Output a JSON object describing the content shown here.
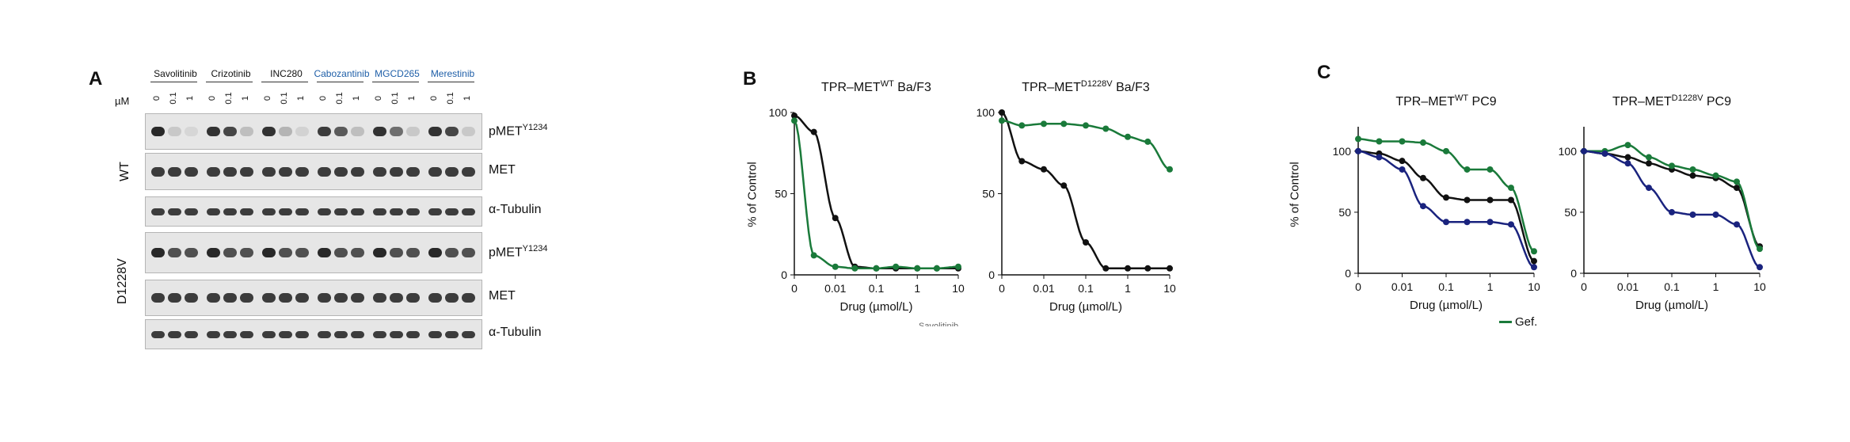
{
  "panelA": {
    "letter": "A",
    "unit": "µM",
    "drugs": [
      {
        "name": "Savolitinib",
        "color": "#111111"
      },
      {
        "name": "Crizotinib",
        "color": "#111111"
      },
      {
        "name": "INC280",
        "color": "#111111"
      },
      {
        "name": "Cabozantinib",
        "color": "#1f5fa8"
      },
      {
        "name": "MGCD265",
        "color": "#1f5fa8"
      },
      {
        "name": "Merestinib",
        "color": "#1f5fa8"
      }
    ],
    "doses": [
      "0",
      "0.1",
      "1"
    ],
    "groups": [
      {
        "label": "WT",
        "rows": [
          "pMET",
          "MET",
          "α-Tubulin"
        ]
      },
      {
        "label": "D1228V",
        "rows": [
          "pMET",
          "MET",
          "α-Tubulin"
        ]
      }
    ],
    "phospho_superscript": "Y1234"
  },
  "panelB": {
    "letter": "B",
    "ylabel": "% of Control",
    "xlabel": "Drug (µmol/L)",
    "bottom_label": "Savolitinib"
  },
  "panelC": {
    "letter": "C",
    "ylabel": "% of Control",
    "xlabel": "Drug (µmol/L)",
    "legend": [
      {
        "name": "Gef.",
        "color": "#1a7a3a"
      }
    ]
  },
  "colors": {
    "black": "#111111",
    "green": "#1a7a3a",
    "navy": "#1a237e"
  },
  "chart_data": [
    {
      "type": "line",
      "title": "TPR–MET",
      "title_sup": "WT",
      "title_suffix": " Ba/F3",
      "xlabel": "Drug (µmol/L)",
      "ylabel": "% of Control",
      "x_scale": "log",
      "x_ticks": [
        "0",
        "0.01",
        "0.1",
        "1",
        "10"
      ],
      "y_ticks": [
        "0",
        "50",
        "100"
      ],
      "ylim": [
        0,
        100
      ],
      "series": [
        {
          "color": "#111111",
          "x": [
            0.001,
            0.003,
            0.01,
            0.03,
            0.1,
            0.3,
            1,
            3,
            10
          ],
          "y": [
            98,
            88,
            35,
            5,
            4,
            4,
            4,
            4,
            4
          ]
        },
        {
          "color": "#1a7a3a",
          "x": [
            0.001,
            0.003,
            0.01,
            0.03,
            0.1,
            0.3,
            1,
            3,
            10
          ],
          "y": [
            95,
            12,
            5,
            4,
            4,
            5,
            4,
            4,
            5
          ]
        }
      ]
    },
    {
      "type": "line",
      "title": "TPR–MET",
      "title_sup": "D1228V",
      "title_suffix": " Ba/F3",
      "xlabel": "Drug (µmol/L)",
      "ylabel": "",
      "x_scale": "log",
      "x_ticks": [
        "0",
        "0.01",
        "0.1",
        "1",
        "10"
      ],
      "y_ticks": [
        "0",
        "50",
        "100"
      ],
      "ylim": [
        0,
        100
      ],
      "series": [
        {
          "color": "#111111",
          "x": [
            0.001,
            0.003,
            0.01,
            0.03,
            0.1,
            0.3,
            1,
            3,
            10
          ],
          "y": [
            100,
            70,
            65,
            55,
            20,
            4,
            4,
            4,
            4
          ]
        },
        {
          "color": "#1a7a3a",
          "x": [
            0.001,
            0.003,
            0.01,
            0.03,
            0.1,
            0.3,
            1,
            3,
            10
          ],
          "y": [
            95,
            92,
            93,
            93,
            92,
            90,
            85,
            82,
            65
          ]
        }
      ]
    },
    {
      "type": "line",
      "title": "TPR–MET",
      "title_sup": "WT",
      "title_suffix": " PC9",
      "xlabel": "Drug (µmol/L)",
      "ylabel": "% of Control",
      "x_scale": "log",
      "x_ticks": [
        "0",
        "0.01",
        "0.1",
        "1",
        "10"
      ],
      "y_ticks": [
        "0",
        "50",
        "100"
      ],
      "ylim": [
        0,
        120
      ],
      "series": [
        {
          "color": "#111111",
          "x": [
            0.001,
            0.003,
            0.01,
            0.03,
            0.1,
            0.3,
            1,
            3,
            10
          ],
          "y": [
            100,
            98,
            92,
            78,
            62,
            60,
            60,
            60,
            10
          ]
        },
        {
          "color": "#1a7a3a",
          "x": [
            0.001,
            0.003,
            0.01,
            0.03,
            0.1,
            0.3,
            1,
            3,
            10
          ],
          "y": [
            110,
            108,
            108,
            107,
            100,
            85,
            85,
            70,
            18
          ]
        },
        {
          "color": "#1a237e",
          "x": [
            0.001,
            0.003,
            0.01,
            0.03,
            0.1,
            0.3,
            1,
            3,
            10
          ],
          "y": [
            100,
            95,
            85,
            55,
            42,
            42,
            42,
            40,
            5
          ]
        }
      ]
    },
    {
      "type": "line",
      "title": "TPR–MET",
      "title_sup": "D1228V",
      "title_suffix": " PC9",
      "xlabel": "Drug (µmol/L)",
      "ylabel": "",
      "x_scale": "log",
      "x_ticks": [
        "0",
        "0.01",
        "0.1",
        "1",
        "10"
      ],
      "y_ticks": [
        "0",
        "50",
        "100"
      ],
      "ylim": [
        0,
        120
      ],
      "series": [
        {
          "color": "#111111",
          "x": [
            0.001,
            0.003,
            0.01,
            0.03,
            0.1,
            0.3,
            1,
            3,
            10
          ],
          "y": [
            100,
            98,
            95,
            90,
            85,
            80,
            78,
            70,
            22
          ]
        },
        {
          "color": "#1a7a3a",
          "x": [
            0.001,
            0.003,
            0.01,
            0.03,
            0.1,
            0.3,
            1,
            3,
            10
          ],
          "y": [
            100,
            100,
            105,
            95,
            88,
            85,
            80,
            75,
            20
          ]
        },
        {
          "color": "#1a237e",
          "x": [
            0.001,
            0.003,
            0.01,
            0.03,
            0.1,
            0.3,
            1,
            3,
            10
          ],
          "y": [
            100,
            98,
            90,
            70,
            50,
            48,
            48,
            40,
            5
          ]
        }
      ]
    }
  ]
}
